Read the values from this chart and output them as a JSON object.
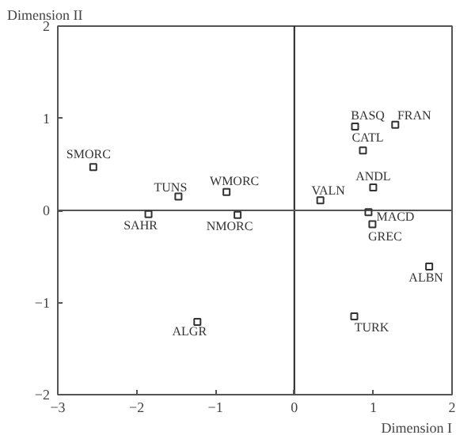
{
  "chart_data": {
    "type": "scatter",
    "xlabel": "Dimension I",
    "ylabel": "Dimension II",
    "x": [
      -2.55,
      -1.47,
      -0.86,
      0.33,
      0.77,
      1.28,
      0.87,
      1.0,
      0.94,
      0.99,
      1.71,
      0.76,
      -1.23,
      -1.85,
      -0.72
    ],
    "values": [
      0.47,
      0.15,
      0.2,
      0.11,
      0.91,
      0.93,
      0.65,
      0.25,
      -0.02,
      -0.15,
      -0.61,
      -1.15,
      -1.21,
      -0.04,
      -0.05
    ],
    "color": "#333333",
    "marker": "square",
    "grid": false,
    "xlim": [
      -3,
      2
    ],
    "ylim": [
      -2,
      2
    ],
    "xticks": [
      -3,
      -2,
      -1,
      0,
      1,
      2
    ],
    "yticks": [
      -2,
      -1,
      0,
      1,
      2
    ],
    "ref_lines": [
      {
        "axis": "x",
        "value": 0,
        "color": "#222222"
      },
      {
        "axis": "y",
        "value": 0,
        "color": "#555555"
      }
    ],
    "annotations": [
      {
        "text": "SMORC",
        "x": -2.55,
        "y": 0.47
      },
      {
        "text": "TUNS",
        "x": -1.47,
        "y": 0.15
      },
      {
        "text": "WMORC",
        "x": -0.86,
        "y": 0.2
      },
      {
        "text": "VALN",
        "x": 0.33,
        "y": 0.11
      },
      {
        "text": "BASQ",
        "x": 0.77,
        "y": 0.91
      },
      {
        "text": "FRAN",
        "x": 1.28,
        "y": 0.93
      },
      {
        "text": "CATL",
        "x": 0.87,
        "y": 0.65
      },
      {
        "text": "ANDL",
        "x": 1.0,
        "y": 0.25
      },
      {
        "text": "MACD",
        "x": 0.94,
        "y": -0.02
      },
      {
        "text": "GREC",
        "x": 0.99,
        "y": -0.15
      },
      {
        "text": "ALBN",
        "x": 1.71,
        "y": -0.61
      },
      {
        "text": "TURK",
        "x": 0.76,
        "y": -1.15
      },
      {
        "text": "ALGR",
        "x": -1.23,
        "y": -1.21
      },
      {
        "text": "SAHR",
        "x": -1.85,
        "y": -0.04
      },
      {
        "text": "NMORC",
        "x": -0.72,
        "y": -0.05
      }
    ]
  }
}
